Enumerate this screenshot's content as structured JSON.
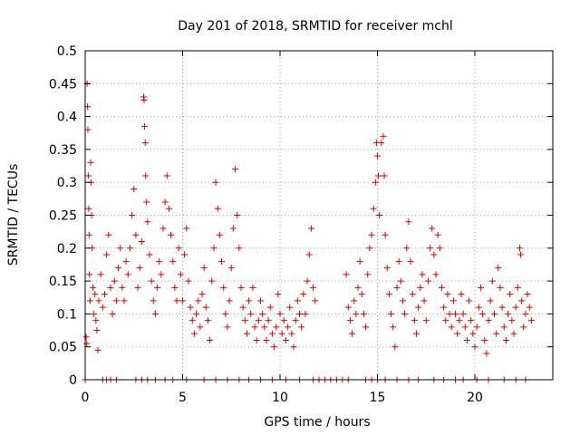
{
  "chart_data": {
    "type": "scatter",
    "title": "Day 201 of 2018, SRMTID for receiver mchl",
    "xlabel": "GPS time / hours",
    "ylabel": "SRMTID / TECUs",
    "xlim": [
      0,
      24
    ],
    "ylim": [
      0,
      0.5
    ],
    "xticks": [
      0,
      5,
      10,
      15,
      20
    ],
    "yticks": [
      0,
      0.05,
      0.1,
      0.15,
      0.2,
      0.25,
      0.3,
      0.35,
      0.4,
      0.45,
      0.5
    ],
    "xtick_labels": [
      "0",
      "5",
      "10",
      "15",
      "20"
    ],
    "ytick_labels": [
      "0",
      "0.05",
      "0.1",
      "0.15",
      "0.2",
      "0.25",
      "0.3",
      "0.35",
      "0.4",
      "0.45",
      "0.5"
    ],
    "grid": true,
    "marker": "+",
    "color": "#e00000",
    "series": [
      {
        "name": "SRMTID",
        "points": [
          [
            0.05,
            0.065
          ],
          [
            0.08,
            0.055
          ],
          [
            0.1,
            0.45
          ],
          [
            0.12,
            0.415
          ],
          [
            0.14,
            0.38
          ],
          [
            0.16,
            0.31
          ],
          [
            0.18,
            0.26
          ],
          [
            0.2,
            0.22
          ],
          [
            0.22,
            0.16
          ],
          [
            0.25,
            0.12
          ],
          [
            0.28,
            0.33
          ],
          [
            0.3,
            0.3
          ],
          [
            0.33,
            0.25
          ],
          [
            0.36,
            0.2
          ],
          [
            0.4,
            0.14
          ],
          [
            0.45,
            0.1
          ],
          [
            0.5,
            0.13
          ],
          [
            0.55,
            0.09
          ],
          [
            0.6,
            0.075
          ],
          [
            0.65,
            0.045
          ],
          [
            0.7,
            0.12
          ],
          [
            0.8,
            0.16
          ],
          [
            0.9,
            0.11
          ],
          [
            1.0,
            0.13
          ],
          [
            1.1,
            0.19
          ],
          [
            1.2,
            0.22
          ],
          [
            1.3,
            0.14
          ],
          [
            1.4,
            0.1
          ],
          [
            1.5,
            0.15
          ],
          [
            1.6,
            0.12
          ],
          [
            1.7,
            0.17
          ],
          [
            1.8,
            0.2
          ],
          [
            1.9,
            0.14
          ],
          [
            2.0,
            0.12
          ],
          [
            2.1,
            0.18
          ],
          [
            2.2,
            0.16
          ],
          [
            2.3,
            0.2
          ],
          [
            2.4,
            0.25
          ],
          [
            2.5,
            0.29
          ],
          [
            2.6,
            0.22
          ],
          [
            2.7,
            0.14
          ],
          [
            2.8,
            0.17
          ],
          [
            2.9,
            0.21
          ],
          [
            3.0,
            0.43
          ],
          [
            3.02,
            0.425
          ],
          [
            3.05,
            0.385
          ],
          [
            3.08,
            0.36
          ],
          [
            3.1,
            0.31
          ],
          [
            3.15,
            0.27
          ],
          [
            3.2,
            0.24
          ],
          [
            3.3,
            0.19
          ],
          [
            3.4,
            0.15
          ],
          [
            3.5,
            0.12
          ],
          [
            3.6,
            0.1
          ],
          [
            3.7,
            0.14
          ],
          [
            3.8,
            0.18
          ],
          [
            3.9,
            0.16
          ],
          [
            4.0,
            0.23
          ],
          [
            4.1,
            0.27
          ],
          [
            4.2,
            0.31
          ],
          [
            4.3,
            0.26
          ],
          [
            4.4,
            0.22
          ],
          [
            4.5,
            0.18
          ],
          [
            4.6,
            0.14
          ],
          [
            4.7,
            0.12
          ],
          [
            4.8,
            0.2
          ],
          [
            4.9,
            0.16
          ],
          [
            5.0,
            0.12
          ],
          [
            5.1,
            0.19
          ],
          [
            5.2,
            0.23
          ],
          [
            5.3,
            0.15
          ],
          [
            5.4,
            0.11
          ],
          [
            5.5,
            0.09
          ],
          [
            5.6,
            0.07
          ],
          [
            5.7,
            0.1
          ],
          [
            5.8,
            0.12
          ],
          [
            5.9,
            0.08
          ],
          [
            6.0,
            0.13
          ],
          [
            6.1,
            0.17
          ],
          [
            6.2,
            0.11
          ],
          [
            6.3,
            0.09
          ],
          [
            6.4,
            0.06
          ],
          [
            6.5,
            0.15
          ],
          [
            6.6,
            0.2
          ],
          [
            6.7,
            0.3
          ],
          [
            6.8,
            0.26
          ],
          [
            6.9,
            0.22
          ],
          [
            7.0,
            0.18
          ],
          [
            7.1,
            0.14
          ],
          [
            7.2,
            0.1
          ],
          [
            7.3,
            0.08
          ],
          [
            7.4,
            0.12
          ],
          [
            7.5,
            0.17
          ],
          [
            7.6,
            0.23
          ],
          [
            7.7,
            0.32
          ],
          [
            7.8,
            0.25
          ],
          [
            7.9,
            0.2
          ],
          [
            8.0,
            0.14
          ],
          [
            8.1,
            0.11
          ],
          [
            8.2,
            0.09
          ],
          [
            8.3,
            0.07
          ],
          [
            8.4,
            0.12
          ],
          [
            8.5,
            0.1
          ],
          [
            8.6,
            0.14
          ],
          [
            8.7,
            0.08
          ],
          [
            8.8,
            0.06
          ],
          [
            8.9,
            0.09
          ],
          [
            9.0,
            0.12
          ],
          [
            9.1,
            0.1
          ],
          [
            9.2,
            0.08
          ],
          [
            9.3,
            0.06
          ],
          [
            9.4,
            0.09
          ],
          [
            9.5,
            0.11
          ],
          [
            9.6,
            0.07
          ],
          [
            9.7,
            0.05
          ],
          [
            9.8,
            0.08
          ],
          [
            9.9,
            0.13
          ],
          [
            10.0,
            0.1
          ],
          [
            10.1,
            0.07
          ],
          [
            10.2,
            0.09
          ],
          [
            10.3,
            0.06
          ],
          [
            10.4,
            0.08
          ],
          [
            10.5,
            0.11
          ],
          [
            10.6,
            0.07
          ],
          [
            10.7,
            0.05
          ],
          [
            10.8,
            0.09
          ],
          [
            10.9,
            0.12
          ],
          [
            11.0,
            0.1
          ],
          [
            11.1,
            0.08
          ],
          [
            11.2,
            0.13
          ],
          [
            11.3,
            0.1
          ],
          [
            11.4,
            0.15
          ],
          [
            11.5,
            0.19
          ],
          [
            11.6,
            0.23
          ],
          [
            11.7,
            0.14
          ],
          [
            11.8,
            0.12
          ],
          [
            13.4,
            0.16
          ],
          [
            13.5,
            0.11
          ],
          [
            13.6,
            0.09
          ],
          [
            13.7,
            0.07
          ],
          [
            13.8,
            0.12
          ],
          [
            13.9,
            0.1
          ],
          [
            14.0,
            0.14
          ],
          [
            14.1,
            0.18
          ],
          [
            14.2,
            0.13
          ],
          [
            14.3,
            0.1
          ],
          [
            14.4,
            0.08
          ],
          [
            14.5,
            0.16
          ],
          [
            14.6,
            0.2
          ],
          [
            14.7,
            0.22
          ],
          [
            14.8,
            0.26
          ],
          [
            14.9,
            0.3
          ],
          [
            14.95,
            0.36
          ],
          [
            15.0,
            0.34
          ],
          [
            15.05,
            0.31
          ],
          [
            15.1,
            0.25
          ],
          [
            15.2,
            0.36
          ],
          [
            15.3,
            0.37
          ],
          [
            15.35,
            0.31
          ],
          [
            15.4,
            0.22
          ],
          [
            15.5,
            0.17
          ],
          [
            15.6,
            0.13
          ],
          [
            15.7,
            0.1
          ],
          [
            15.8,
            0.08
          ],
          [
            15.9,
            0.05
          ],
          [
            16.0,
            0.14
          ],
          [
            16.1,
            0.18
          ],
          [
            16.2,
            0.15
          ],
          [
            16.3,
            0.12
          ],
          [
            16.4,
            0.1
          ],
          [
            16.5,
            0.2
          ],
          [
            16.6,
            0.24
          ],
          [
            16.7,
            0.18
          ],
          [
            16.8,
            0.13
          ],
          [
            16.9,
            0.09
          ],
          [
            17.0,
            0.07
          ],
          [
            17.1,
            0.11
          ],
          [
            17.2,
            0.14
          ],
          [
            17.3,
            0.16
          ],
          [
            17.4,
            0.12
          ],
          [
            17.5,
            0.09
          ],
          [
            17.6,
            0.15
          ],
          [
            17.7,
            0.2
          ],
          [
            17.8,
            0.23
          ],
          [
            17.9,
            0.19
          ],
          [
            18.0,
            0.16
          ],
          [
            18.1,
            0.22
          ],
          [
            18.2,
            0.2
          ],
          [
            18.3,
            0.14
          ],
          [
            18.4,
            0.11
          ],
          [
            18.5,
            0.09
          ],
          [
            18.6,
            0.13
          ],
          [
            18.7,
            0.1
          ],
          [
            18.8,
            0.08
          ],
          [
            18.9,
            0.12
          ],
          [
            19.0,
            0.1
          ],
          [
            19.1,
            0.07
          ],
          [
            19.2,
            0.09
          ],
          [
            19.3,
            0.13
          ],
          [
            19.4,
            0.1
          ],
          [
            19.5,
            0.08
          ],
          [
            19.6,
            0.06
          ],
          [
            19.7,
            0.12
          ],
          [
            19.8,
            0.09
          ],
          [
            19.9,
            0.07
          ],
          [
            20.0,
            0.05
          ],
          [
            20.1,
            0.08
          ],
          [
            20.2,
            0.11
          ],
          [
            20.3,
            0.14
          ],
          [
            20.4,
            0.1
          ],
          [
            20.5,
            0.06
          ],
          [
            20.6,
            0.04
          ],
          [
            20.7,
            0.09
          ],
          [
            20.8,
            0.12
          ],
          [
            20.9,
            0.15
          ],
          [
            21.0,
            0.1
          ],
          [
            21.1,
            0.07
          ],
          [
            21.2,
            0.17
          ],
          [
            21.3,
            0.14
          ],
          [
            21.4,
            0.11
          ],
          [
            21.5,
            0.08
          ],
          [
            21.6,
            0.06
          ],
          [
            21.7,
            0.1
          ],
          [
            21.8,
            0.13
          ],
          [
            21.9,
            0.09
          ],
          [
            22.0,
            0.07
          ],
          [
            22.1,
            0.11
          ],
          [
            22.2,
            0.14
          ],
          [
            22.3,
            0.2
          ],
          [
            22.35,
            0.19
          ],
          [
            22.4,
            0.12
          ],
          [
            22.5,
            0.08
          ],
          [
            22.6,
            0.1
          ],
          [
            22.7,
            0.13
          ],
          [
            22.8,
            0.11
          ],
          [
            22.9,
            0.09
          ],
          [
            0.0,
            0.0
          ],
          [
            0.9,
            0.0
          ],
          [
            1.1,
            0.0
          ],
          [
            1.3,
            0.0
          ],
          [
            1.6,
            0.0
          ],
          [
            2.6,
            0.0
          ],
          [
            2.9,
            0.0
          ],
          [
            3.2,
            0.0
          ],
          [
            3.6,
            0.0
          ],
          [
            4.1,
            0.0
          ],
          [
            4.5,
            0.0
          ],
          [
            5.2,
            0.0
          ],
          [
            6.1,
            0.0
          ],
          [
            6.7,
            0.0
          ],
          [
            7.3,
            0.0
          ],
          [
            7.9,
            0.0
          ],
          [
            8.4,
            0.0
          ],
          [
            9.0,
            0.0
          ],
          [
            9.6,
            0.0
          ],
          [
            10.3,
            0.0
          ],
          [
            11.0,
            0.0
          ],
          [
            11.7,
            0.0
          ],
          [
            12.0,
            0.0
          ],
          [
            12.3,
            0.0
          ],
          [
            12.6,
            0.0
          ],
          [
            12.9,
            0.0
          ],
          [
            13.2,
            0.0
          ],
          [
            13.5,
            0.0
          ],
          [
            14.4,
            0.0
          ],
          [
            14.7,
            0.0
          ],
          [
            15.0,
            0.0
          ],
          [
            15.4,
            0.0
          ],
          [
            16.0,
            0.0
          ],
          [
            16.6,
            0.0
          ],
          [
            17.1,
            0.0
          ],
          [
            17.9,
            0.0
          ],
          [
            18.4,
            0.0
          ],
          [
            19.0,
            0.0
          ],
          [
            19.4,
            0.0
          ],
          [
            20.1,
            0.0
          ],
          [
            20.7,
            0.0
          ],
          [
            21.5,
            0.0
          ],
          [
            22.1,
            0.0
          ],
          [
            22.6,
            0.0
          ]
        ]
      }
    ]
  }
}
